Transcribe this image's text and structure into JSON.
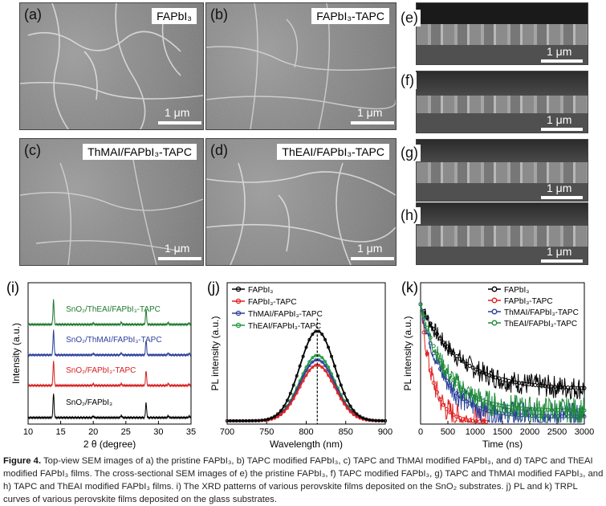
{
  "sem_top": [
    {
      "label": "(a)",
      "tag": "FAPbI₃",
      "scale": "1 μm"
    },
    {
      "label": "(b)",
      "tag": "FAPbI₃-TAPC",
      "scale": "1 μm"
    },
    {
      "label": "(c)",
      "tag": "ThMAI/FAPbI₃-TAPC",
      "scale": "1 μm"
    },
    {
      "label": "(d)",
      "tag": "ThEAI/FAPbI₃-TAPC",
      "scale": "1 μm"
    }
  ],
  "sem_cross": [
    {
      "label": "(e)",
      "scale": "1 μm"
    },
    {
      "label": "(f)",
      "scale": "1 μm"
    },
    {
      "label": "(g)",
      "scale": "1 μm"
    },
    {
      "label": "(h)",
      "scale": "1 μm"
    }
  ],
  "panel_i": {
    "label": "(i)"
  },
  "panel_j": {
    "label": "(j)"
  },
  "panel_k": {
    "label": "(k)"
  },
  "chart_data": [
    {
      "type": "line",
      "panel": "i",
      "xlabel": "2 θ (degree)",
      "ylabel": "Intensity (a.u.)",
      "xlim": [
        10,
        35
      ],
      "xticks": [
        10,
        15,
        20,
        25,
        30,
        35
      ],
      "peaks": [
        13.9,
        20.0,
        24.3,
        28.1,
        31.5,
        34.7
      ],
      "series": [
        {
          "name": "SnO₂/FAPbI₃",
          "color": "#000000",
          "peak_heights": [
            0.9,
            0.06,
            0.08,
            0.55,
            0.07,
            0.05
          ]
        },
        {
          "name": "SnO₂/FAPbI₃-TAPC",
          "color": "#d62020",
          "peak_heights": [
            0.9,
            0.06,
            0.08,
            0.55,
            0.07,
            0.05
          ]
        },
        {
          "name": "SnO₂/ThMAI/FAPbI₃-TAPC",
          "color": "#2a3f9d",
          "peak_heights": [
            0.9,
            0.06,
            0.08,
            0.55,
            0.07,
            0.05
          ]
        },
        {
          "name": "SnO₂/ThEAI/FAPbI₃-TAPC",
          "color": "#1d7a2e",
          "peak_heights": [
            0.9,
            0.06,
            0.08,
            0.55,
            0.07,
            0.05
          ]
        }
      ]
    },
    {
      "type": "line",
      "panel": "j",
      "xlabel": "Wavelength (nm)",
      "ylabel": "PL intensity (a.u.)",
      "xlim": [
        700,
        900
      ],
      "xticks": [
        700,
        750,
        800,
        850,
        900
      ],
      "peak_wavelength": 814,
      "series": [
        {
          "name": "FAPbI₃",
          "color": "#000000",
          "marker": "square",
          "peak": 1.0,
          "fwhm": 52
        },
        {
          "name": "FAPbI₃-TAPC",
          "color": "#e02020",
          "marker": "circle",
          "peak": 0.62,
          "fwhm": 52
        },
        {
          "name": "ThMAI/FAPbI₃-TAPC",
          "color": "#2a3f9d",
          "marker": "triangle",
          "peak": 0.68,
          "fwhm": 52
        },
        {
          "name": "ThEAI/FAPbI₃-TAPC",
          "color": "#1d9a3e",
          "marker": "diamond",
          "peak": 0.73,
          "fwhm": 52
        }
      ]
    },
    {
      "type": "scatter",
      "panel": "k",
      "xlabel": "Time (ns)",
      "ylabel": "PL intensity (a.u.)",
      "xlim": [
        0,
        3000
      ],
      "xticks": [
        0,
        500,
        1000,
        1500,
        2000,
        2500,
        3000
      ],
      "series": [
        {
          "name": "FAPbI₃",
          "color": "#000000",
          "decay_ns": 700,
          "end_ns": 3000
        },
        {
          "name": "FAPbI₃-TAPC",
          "color": "#e02020",
          "decay_ns": 220,
          "end_ns": 1200
        },
        {
          "name": "ThMAI/FAPbI₃-TAPC",
          "color": "#2a3f9d",
          "decay_ns": 420,
          "end_ns": 3000
        },
        {
          "name": "ThEAI/FAPbI₃-TAPC",
          "color": "#1d8a3a",
          "decay_ns": 480,
          "end_ns": 3000
        }
      ]
    }
  ],
  "caption": {
    "lead": "Figure 4.",
    "text": "Top-view SEM images of a) the pristine FAPbI₃, b) TAPC modified FAPbI₃, c) TAPC and ThMAI modified FAPbI₃, and d) TAPC and ThEAI modified FAPbI₃ films. The cross-sectional SEM images of e) the pristine FAPbI₃, f) TAPC modified FAPbI₃, g) TAPC and ThMAI modified FAPbI₃, and h) TAPC and ThEAI modified FAPbI₃ films. i) The XRD patterns of various perovskite films deposited on the SnO₂ substrates. j) PL and k) TRPL curves of various perovskite films deposited on the glass substrates."
  }
}
